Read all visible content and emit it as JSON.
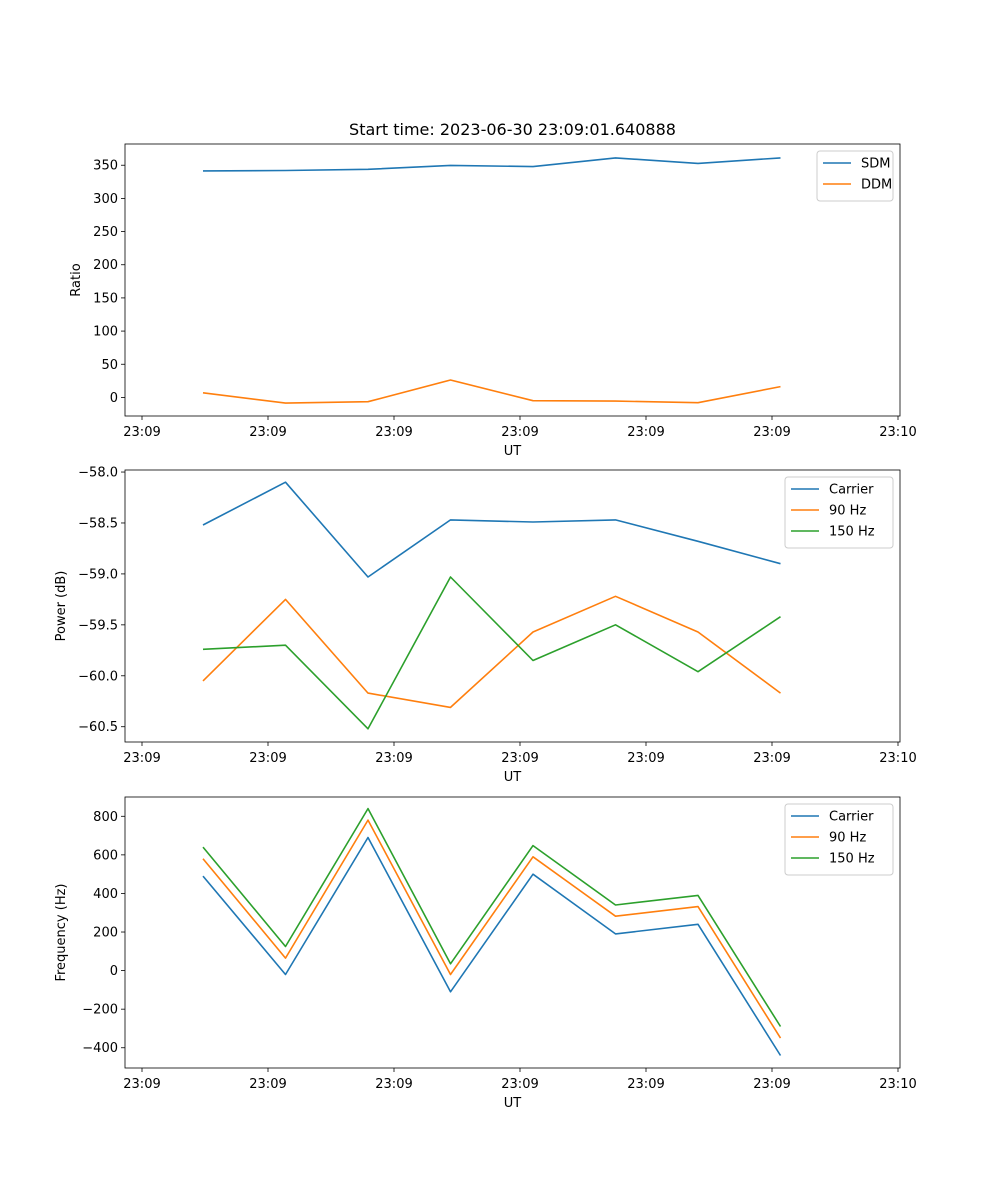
{
  "title": "Start time: 2023-06-30 23:09:01.640888",
  "chart_data": [
    {
      "type": "line",
      "xlabel": "UT",
      "ylabel": "Ratio",
      "x_tick_labels": [
        "23:09",
        "23:09",
        "23:09",
        "23:09",
        "23:09",
        "23:09",
        "23:10"
      ],
      "y_ticks": [
        0,
        50,
        100,
        150,
        200,
        250,
        300,
        350
      ],
      "ylim": [
        -28,
        382
      ],
      "legend_position": "upper right",
      "series": [
        {
          "name": "SDM",
          "color": "#1f77b4",
          "values": [
            341.5,
            342,
            343.8,
            349.7,
            348,
            361,
            352.8,
            361
          ]
        },
        {
          "name": "DDM",
          "color": "#ff7f0e",
          "values": [
            7,
            -8.5,
            -6.5,
            26.3,
            -5,
            -5.5,
            -8,
            16.3
          ]
        }
      ]
    },
    {
      "type": "line",
      "xlabel": "UT",
      "ylabel": "Power (dB)",
      "x_tick_labels": [
        "23:09",
        "23:09",
        "23:09",
        "23:09",
        "23:09",
        "23:09",
        "23:10"
      ],
      "y_ticks": [
        -60.5,
        -60.0,
        -59.5,
        -59.0,
        -58.5,
        -58.0
      ],
      "y_tick_labels": [
        "−60.5",
        "−60.0",
        "−59.5",
        "−59.0",
        "−58.5",
        "−58.0"
      ],
      "ylim": [
        -60.65,
        -57.98
      ],
      "legend_position": "upper right",
      "series": [
        {
          "name": "Carrier",
          "color": "#1f77b4",
          "values": [
            -58.52,
            -58.1,
            -59.03,
            -58.47,
            -58.49,
            -58.47,
            -58.68,
            -58.9
          ]
        },
        {
          "name": "90 Hz",
          "color": "#ff7f0e",
          "values": [
            -60.05,
            -59.25,
            -60.17,
            -60.31,
            -59.57,
            -59.22,
            -59.57,
            -60.17
          ]
        },
        {
          "name": "150 Hz",
          "color": "#2ca02c",
          "values": [
            -59.74,
            -59.7,
            -60.52,
            -59.03,
            -59.85,
            -59.5,
            -59.96,
            -59.42
          ]
        }
      ]
    },
    {
      "type": "line",
      "xlabel": "UT",
      "ylabel": "Frequency (Hz)",
      "x_tick_labels": [
        "23:09",
        "23:09",
        "23:09",
        "23:09",
        "23:09",
        "23:09",
        "23:10"
      ],
      "y_ticks": [
        -400,
        -200,
        0,
        200,
        400,
        600,
        800
      ],
      "y_tick_labels": [
        "−400",
        "−200",
        "0",
        "200",
        "400",
        "600",
        "800"
      ],
      "ylim": [
        -505,
        900
      ],
      "legend_position": "upper right",
      "series": [
        {
          "name": "Carrier",
          "color": "#1f77b4",
          "values": [
            490,
            -20,
            690,
            -110,
            500,
            190,
            240,
            -440
          ]
        },
        {
          "name": "90 Hz",
          "color": "#ff7f0e",
          "values": [
            580,
            65,
            780,
            -20,
            590,
            282,
            332,
            -350
          ]
        },
        {
          "name": "150 Hz",
          "color": "#2ca02c",
          "values": [
            640,
            125,
            840,
            35,
            648,
            340,
            390,
            -290
          ]
        }
      ]
    }
  ]
}
